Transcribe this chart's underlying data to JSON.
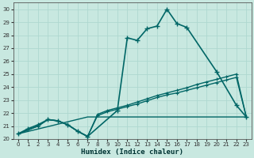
{
  "xlabel": "Humidex (Indice chaleur)",
  "xlim": [
    -0.5,
    23.5
  ],
  "ylim": [
    20,
    30.5
  ],
  "yticks": [
    20,
    21,
    22,
    23,
    24,
    25,
    26,
    27,
    28,
    29,
    30
  ],
  "xticks": [
    0,
    1,
    2,
    3,
    4,
    5,
    6,
    7,
    8,
    9,
    10,
    11,
    12,
    13,
    14,
    15,
    16,
    17,
    18,
    19,
    20,
    21,
    22,
    23
  ],
  "bg_color": "#c8e8e0",
  "grid_color": "#aed8d0",
  "line_color": "#006666",
  "series": [
    {
      "x": [
        0,
        1,
        2,
        3,
        4,
        5,
        6,
        7,
        8,
        9,
        10,
        11,
        12,
        13,
        14,
        15,
        16,
        17,
        18,
        19,
        20,
        21,
        22,
        23
      ],
      "y": [
        20.4,
        20.8,
        21.1,
        21.5,
        21.4,
        21.1,
        20.6,
        20.2,
        null,
        null,
        22.2,
        27.8,
        27.6,
        28.5,
        28.7,
        30.0,
        28.9,
        28.6,
        null,
        null,
        25.2,
        null,
        22.6,
        21.7
      ],
      "marker": "+",
      "markersize": 4,
      "linewidth": 1.2,
      "draw_markers": true
    },
    {
      "x": [
        0,
        2,
        3,
        4,
        5,
        6,
        7,
        8,
        9,
        10,
        11,
        12,
        13,
        14,
        15,
        16,
        17,
        18,
        19,
        20,
        21,
        22,
        23
      ],
      "y": [
        20.4,
        21.0,
        21.5,
        21.4,
        21.1,
        20.6,
        20.2,
        21.8,
        22.1,
        22.3,
        22.5,
        22.7,
        22.95,
        23.2,
        23.4,
        23.55,
        23.75,
        23.95,
        24.15,
        24.35,
        24.55,
        24.75,
        21.7
      ],
      "marker": "+",
      "markersize": 3,
      "linewidth": 1.0
    },
    {
      "x": [
        0,
        2,
        3,
        4,
        5,
        6,
        7,
        8,
        9,
        10,
        11,
        12,
        13,
        14,
        15,
        16,
        17,
        18,
        19,
        20,
        21,
        22,
        23
      ],
      "y": [
        20.4,
        21.0,
        21.5,
        21.4,
        21.1,
        20.6,
        20.2,
        21.9,
        22.2,
        22.4,
        22.6,
        22.85,
        23.1,
        23.35,
        23.55,
        23.75,
        23.95,
        24.2,
        24.4,
        24.6,
        24.8,
        25.0,
        21.7
      ],
      "marker": "+",
      "markersize": 3,
      "linewidth": 1.0
    },
    {
      "x": [
        0,
        7,
        9,
        23
      ],
      "y": [
        20.4,
        21.7,
        21.7,
        21.7
      ],
      "marker": null,
      "markersize": 0,
      "linewidth": 1.0
    }
  ]
}
